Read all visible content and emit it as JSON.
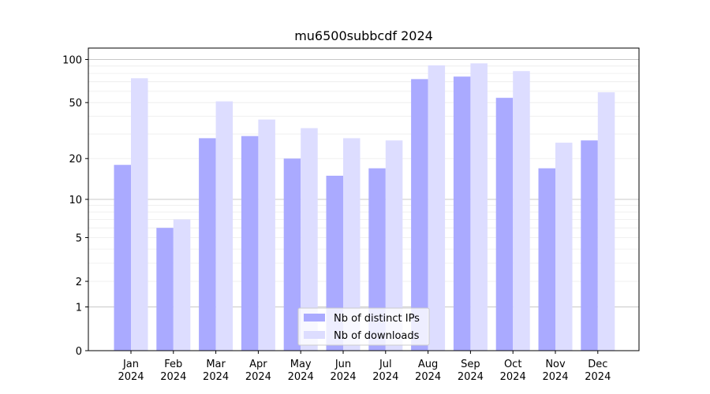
{
  "chart_data": {
    "type": "bar",
    "title": "mu6500subbcdf 2024",
    "xlabel": "",
    "ylabel": "",
    "y_scale": "symlog",
    "ylim": [
      0,
      120
    ],
    "categories": [
      [
        "Jan",
        "2024"
      ],
      [
        "Feb",
        "2024"
      ],
      [
        "Mar",
        "2024"
      ],
      [
        "Apr",
        "2024"
      ],
      [
        "May",
        "2024"
      ],
      [
        "Jun",
        "2024"
      ],
      [
        "Jul",
        "2024"
      ],
      [
        "Aug",
        "2024"
      ],
      [
        "Sep",
        "2024"
      ],
      [
        "Oct",
        "2024"
      ],
      [
        "Nov",
        "2024"
      ],
      [
        "Dec",
        "2024"
      ]
    ],
    "yticks": [
      0,
      1,
      2,
      5,
      10,
      20,
      50,
      100
    ],
    "series": [
      {
        "name": "Nb of distinct IPs",
        "color": "#aaaaff",
        "values": [
          18,
          6,
          28,
          29,
          20,
          15,
          17,
          73,
          76,
          54,
          17,
          27
        ]
      },
      {
        "name": "Nb of downloads",
        "color": "#ddddff",
        "values": [
          74,
          7,
          51,
          38,
          33,
          28,
          27,
          91,
          94,
          83,
          26,
          59
        ]
      }
    ],
    "legend": {
      "position": "bottom-center"
    },
    "grid": {
      "y": true,
      "major_color": "#c8c8c8",
      "minor_color": "#ececec"
    }
  }
}
